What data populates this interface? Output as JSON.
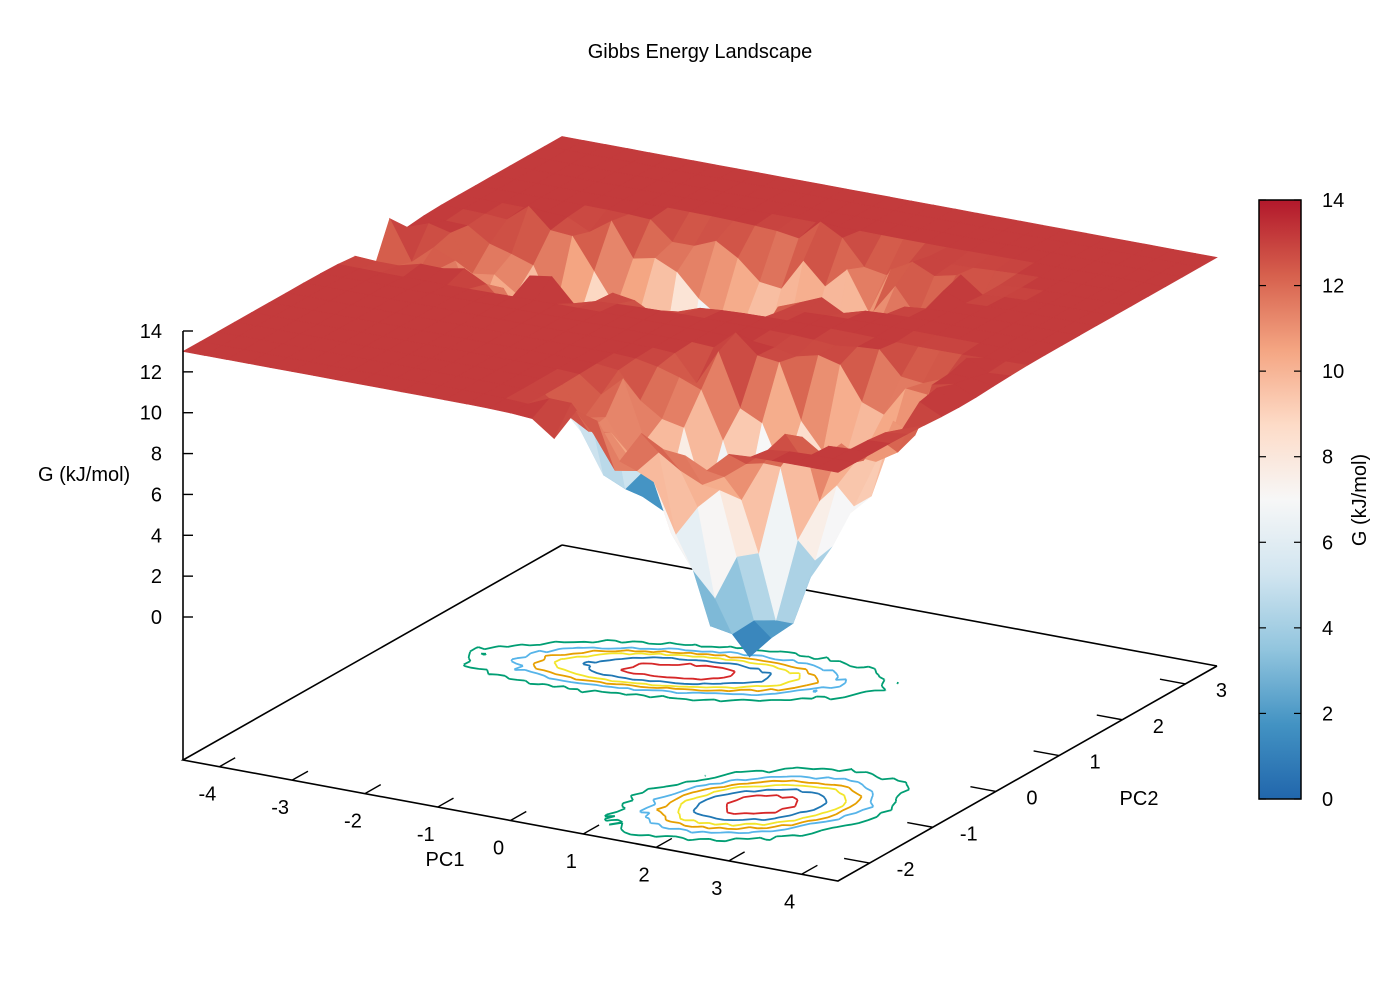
{
  "chart_data": {
    "type": "surface3d",
    "title": "Gibbs Energy Landscape",
    "xlabel": "PC1",
    "ylabel": "PC2",
    "zlabel": "G (kJ/mol)",
    "xlim": [
      -4.5,
      4.5
    ],
    "ylim": [
      -2.5,
      3.5
    ],
    "zlim": [
      0,
      14
    ],
    "x_ticks": [
      "-4",
      "-3",
      "-2",
      "-1",
      "0",
      "1",
      "2",
      "3",
      "4"
    ],
    "y_ticks": [
      "-2",
      "-1",
      "0",
      "1",
      "2",
      "3"
    ],
    "z_ticks": [
      "0",
      "2",
      "4",
      "6",
      "8",
      "10",
      "12",
      "14"
    ],
    "colorbar": {
      "label": "G (kJ/mol)",
      "range": [
        0,
        14
      ],
      "ticks": [
        "0",
        "2",
        "4",
        "6",
        "8",
        "10",
        "12",
        "14"
      ],
      "colormap": [
        "#2166ac",
        "#4393c3",
        "#92c5de",
        "#d1e5f0",
        "#f7f7f7",
        "#fddbc7",
        "#f4a582",
        "#d6604d",
        "#b2182b"
      ]
    },
    "surface_cap": 13,
    "minima": [
      {
        "x": -1.0,
        "y": 1.3,
        "depth": 13,
        "sx": 1.25,
        "sy": 0.42,
        "rho": 0.55
      },
      {
        "x": 2.3,
        "y": -1.2,
        "depth": 13,
        "sx": 0.75,
        "sy": 0.55,
        "rho": 0.4
      }
    ],
    "contour_levels": [
      {
        "level": 1.5,
        "color": "#d62728"
      },
      {
        "level": 4,
        "color": "#1f77b4"
      },
      {
        "level": 6,
        "color": "#f2e52a"
      },
      {
        "level": 7.5,
        "color": "#e69f00"
      },
      {
        "level": 9,
        "color": "#56b4e9"
      },
      {
        "level": 11,
        "color": "#009e73"
      }
    ],
    "grid": false,
    "legend": "colorbar-right"
  }
}
